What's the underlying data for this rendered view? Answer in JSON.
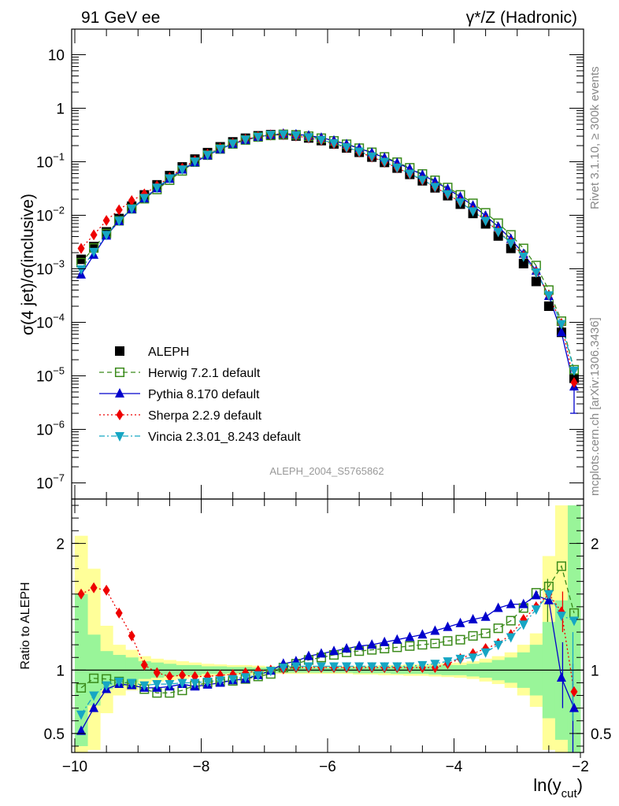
{
  "header": {
    "left": "91 GeV ee",
    "right": "γ*/Z (Hadronic)"
  },
  "side": {
    "top": "Rivet 3.1.10, ≥ 300k events",
    "bottom": "mcplots.cern.ch [arXiv:1306.3436]"
  },
  "watermark": "ALEPH_2004_S5765862",
  "chart_data": [
    {
      "type": "scatter",
      "panel": "main",
      "ylabel": "σ(4 jet)/σ(inclusive)",
      "yscale": "log",
      "ylim": [
        5e-08,
        30
      ],
      "xlim": [
        -10.05,
        -1.95
      ],
      "y_ticks": [
        {
          "v": 1e-07,
          "base": "10",
          "exp": "−7"
        },
        {
          "v": 1e-06,
          "base": "10",
          "exp": "−6"
        },
        {
          "v": 1e-05,
          "base": "10",
          "exp": "−5"
        },
        {
          "v": 0.0001,
          "base": "10",
          "exp": "−4"
        },
        {
          "v": 0.001,
          "base": "10",
          "exp": "−3"
        },
        {
          "v": 0.01,
          "base": "10",
          "exp": "−2"
        },
        {
          "v": 0.1,
          "base": "10",
          "exp": "−1"
        },
        {
          "v": 1,
          "base": "1",
          "exp": ""
        },
        {
          "v": 10,
          "base": "10",
          "exp": ""
        }
      ],
      "x": [
        -9.9,
        -9.7,
        -9.5,
        -9.3,
        -9.1,
        -8.9,
        -8.7,
        -8.5,
        -8.3,
        -8.1,
        -7.9,
        -7.7,
        -7.5,
        -7.3,
        -7.1,
        -6.9,
        -6.7,
        -6.5,
        -6.3,
        -6.1,
        -5.9,
        -5.7,
        -5.5,
        -5.3,
        -5.1,
        -4.9,
        -4.7,
        -4.5,
        -4.3,
        -4.1,
        -3.9,
        -3.7,
        -3.5,
        -3.3,
        -3.1,
        -2.9,
        -2.7,
        -2.5,
        -2.3,
        -2.1
      ],
      "series": [
        {
          "name": "ALEPH",
          "marker": "square-filled",
          "color": "#000000",
          "values": [
            0.0015,
            0.0026,
            0.0049,
            0.0087,
            0.0148,
            0.024,
            0.037,
            0.055,
            0.08,
            0.112,
            0.148,
            0.19,
            0.235,
            0.275,
            0.305,
            0.32,
            0.318,
            0.302,
            0.278,
            0.248,
            0.215,
            0.181,
            0.15,
            0.122,
            0.097,
            0.076,
            0.058,
            0.044,
            0.0325,
            0.0232,
            0.0161,
            0.0108,
            0.0069,
            0.0041,
            0.0024,
            0.00125,
            0.00058,
            0.0002,
            6.5e-05,
            9e-06
          ]
        },
        {
          "name": "Herwig 7.2.1 default",
          "marker": "square-open",
          "color": "#3a8a1a",
          "dash": "6,4",
          "values": [
            0.0013,
            0.00245,
            0.00455,
            0.0079,
            0.0132,
            0.0204,
            0.0303,
            0.0452,
            0.0674,
            0.0986,
            0.133,
            0.173,
            0.215,
            0.255,
            0.29,
            0.31,
            0.325,
            0.318,
            0.3,
            0.275,
            0.245,
            0.212,
            0.179,
            0.15,
            0.123,
            0.098,
            0.077,
            0.059,
            0.045,
            0.033,
            0.024,
            0.0167,
            0.0111,
            0.0071,
            0.0043,
            0.0024,
            0.00115,
            0.0004,
            0.000105,
            1.3e-05
          ]
        },
        {
          "name": "Pythia 8.170 default",
          "marker": "triangle-up",
          "color": "#0000cc",
          "dash": "",
          "values": [
            0.00078,
            0.00182,
            0.00417,
            0.00775,
            0.013,
            0.0206,
            0.0318,
            0.0479,
            0.0712,
            0.0975,
            0.131,
            0.171,
            0.216,
            0.256,
            0.292,
            0.318,
            0.333,
            0.324,
            0.308,
            0.281,
            0.248,
            0.212,
            0.178,
            0.147,
            0.119,
            0.095,
            0.074,
            0.057,
            0.0425,
            0.031,
            0.0221,
            0.0151,
            0.0098,
            0.0061,
            0.0036,
            0.0019,
            0.00092,
            0.00031,
            6.5e-05,
            6.3e-06
          ]
        },
        {
          "name": "Sherpa 2.2.9 default",
          "marker": "diamond",
          "color": "#ee0000",
          "dash": "2,3",
          "values": [
            0.0024,
            0.0043,
            0.008,
            0.0126,
            0.0188,
            0.025,
            0.0356,
            0.051,
            0.076,
            0.105,
            0.139,
            0.178,
            0.221,
            0.262,
            0.294,
            0.315,
            0.32,
            0.303,
            0.279,
            0.249,
            0.216,
            0.182,
            0.151,
            0.123,
            0.098,
            0.077,
            0.059,
            0.045,
            0.0335,
            0.0245,
            0.0176,
            0.0122,
            0.0081,
            0.005,
            0.0031,
            0.00175,
            0.00087,
            0.00032,
            9.5e-05,
            7.5e-06
          ]
        },
        {
          "name": "Vincia 2.3.01_8.243 default",
          "marker": "triangle-down",
          "color": "#16a6c4",
          "dash": "7,3,2,3",
          "values": [
            0.00098,
            0.00208,
            0.00431,
            0.00792,
            0.0133,
            0.0211,
            0.033,
            0.049,
            0.0722,
            0.101,
            0.135,
            0.175,
            0.219,
            0.26,
            0.293,
            0.318,
            0.325,
            0.311,
            0.287,
            0.256,
            0.222,
            0.187,
            0.155,
            0.126,
            0.1,
            0.078,
            0.06,
            0.046,
            0.034,
            0.0248,
            0.0175,
            0.0119,
            0.0079,
            0.0049,
            0.003,
            0.0017,
            0.00086,
            0.00032,
            9.3e-05,
            1.25e-05
          ]
        }
      ],
      "error_bars": [
        {
          "x": -2.1,
          "low": 2e-06,
          "high": 1.4e-05
        }
      ]
    },
    {
      "type": "scatter",
      "panel": "ratio",
      "ylabel": "Ratio to ALEPH",
      "ylim": [
        0.35,
        2.35
      ],
      "xlim": [
        -10.05,
        -1.95
      ],
      "xlabel": "ln(y",
      "xlabel_sub": "cut",
      "xlabel_end": ")",
      "x_ticks": [
        {
          "v": -10,
          "label": "−10"
        },
        {
          "v": -8,
          "label": "−8"
        },
        {
          "v": -6,
          "label": "−6"
        },
        {
          "v": -4,
          "label": "−4"
        },
        {
          "v": -2,
          "label": "−2"
        }
      ],
      "y_ticks": [
        {
          "v": 0.5,
          "label": "0.5"
        },
        {
          "v": 1,
          "label": "1"
        },
        {
          "v": 2,
          "label": "2"
        }
      ],
      "x": [
        -9.9,
        -9.7,
        -9.5,
        -9.3,
        -9.1,
        -8.9,
        -8.7,
        -8.5,
        -8.3,
        -8.1,
        -7.9,
        -7.7,
        -7.5,
        -7.3,
        -7.1,
        -6.9,
        -6.7,
        -6.5,
        -6.3,
        -6.1,
        -5.9,
        -5.7,
        -5.5,
        -5.3,
        -5.1,
        -4.9,
        -4.7,
        -4.5,
        -4.3,
        -4.1,
        -3.9,
        -3.7,
        -3.5,
        -3.3,
        -3.1,
        -2.9,
        -2.7,
        -2.5,
        -2.3,
        -2.1
      ],
      "band_green": [
        [
          0.4,
          1.6
        ],
        [
          0.72,
          1.28
        ],
        [
          0.85,
          1.15
        ],
        [
          0.88,
          1.12
        ],
        [
          0.9,
          1.1
        ],
        [
          0.93,
          1.07
        ],
        [
          0.94,
          1.06
        ],
        [
          0.95,
          1.05
        ],
        [
          0.96,
          1.04
        ],
        [
          0.96,
          1.04
        ],
        [
          0.97,
          1.03
        ],
        [
          0.97,
          1.03
        ],
        [
          0.975,
          1.025
        ],
        [
          0.975,
          1.025
        ],
        [
          0.98,
          1.02
        ],
        [
          0.98,
          1.02
        ],
        [
          0.98,
          1.02
        ],
        [
          0.98,
          1.02
        ],
        [
          0.98,
          1.02
        ],
        [
          0.98,
          1.02
        ],
        [
          0.98,
          1.02
        ],
        [
          0.98,
          1.02
        ],
        [
          0.975,
          1.025
        ],
        [
          0.975,
          1.025
        ],
        [
          0.975,
          1.025
        ],
        [
          0.97,
          1.03
        ],
        [
          0.97,
          1.03
        ],
        [
          0.97,
          1.03
        ],
        [
          0.965,
          1.035
        ],
        [
          0.96,
          1.04
        ],
        [
          0.96,
          1.04
        ],
        [
          0.95,
          1.05
        ],
        [
          0.94,
          1.06
        ],
        [
          0.92,
          1.08
        ],
        [
          0.9,
          1.1
        ],
        [
          0.86,
          1.14
        ],
        [
          0.8,
          1.2
        ],
        [
          0.62,
          1.38
        ],
        [
          0.45,
          1.55
        ],
        [
          0.35,
          2.3
        ]
      ],
      "band_yellow": [
        [
          0.35,
          2.06
        ],
        [
          0.37,
          1.8
        ],
        [
          0.66,
          1.35
        ],
        [
          0.8,
          1.2
        ],
        [
          0.84,
          1.16
        ],
        [
          0.89,
          1.11
        ],
        [
          0.91,
          1.09
        ],
        [
          0.92,
          1.08
        ],
        [
          0.93,
          1.07
        ],
        [
          0.94,
          1.06
        ],
        [
          0.95,
          1.05
        ],
        [
          0.955,
          1.045
        ],
        [
          0.96,
          1.04
        ],
        [
          0.96,
          1.04
        ],
        [
          0.965,
          1.035
        ],
        [
          0.97,
          1.03
        ],
        [
          0.97,
          1.03
        ],
        [
          0.97,
          1.03
        ],
        [
          0.97,
          1.03
        ],
        [
          0.97,
          1.03
        ],
        [
          0.97,
          1.03
        ],
        [
          0.97,
          1.03
        ],
        [
          0.965,
          1.035
        ],
        [
          0.965,
          1.035
        ],
        [
          0.96,
          1.04
        ],
        [
          0.96,
          1.04
        ],
        [
          0.955,
          1.045
        ],
        [
          0.955,
          1.045
        ],
        [
          0.95,
          1.05
        ],
        [
          0.945,
          1.055
        ],
        [
          0.94,
          1.06
        ],
        [
          0.93,
          1.07
        ],
        [
          0.91,
          1.09
        ],
        [
          0.89,
          1.11
        ],
        [
          0.86,
          1.14
        ],
        [
          0.8,
          1.2
        ],
        [
          0.71,
          1.29
        ],
        [
          0.37,
          1.9
        ],
        [
          0.35,
          2.3
        ],
        [
          0.35,
          2.3
        ]
      ],
      "series": [
        {
          "name": "Herwig 7.2.1 default",
          "marker": "square-open",
          "color": "#3a8a1a",
          "dash": "6,4",
          "values": [
            0.86,
            0.935,
            0.93,
            0.91,
            0.89,
            0.85,
            0.82,
            0.82,
            0.84,
            0.88,
            0.9,
            0.91,
            0.915,
            0.93,
            0.95,
            0.97,
            1.02,
            1.05,
            1.08,
            1.1,
            1.12,
            1.14,
            1.15,
            1.16,
            1.17,
            1.18,
            1.19,
            1.2,
            1.21,
            1.23,
            1.24,
            1.27,
            1.29,
            1.33,
            1.39,
            1.49,
            1.61,
            1.66,
            1.82,
            1.45
          ]
        },
        {
          "name": "Pythia 8.170 default",
          "marker": "triangle-up",
          "color": "#0000cc",
          "dash": "",
          "values": [
            0.52,
            0.7,
            0.85,
            0.89,
            0.88,
            0.86,
            0.86,
            0.87,
            0.89,
            0.87,
            0.885,
            0.9,
            0.92,
            0.93,
            0.96,
            0.995,
            1.05,
            1.07,
            1.11,
            1.13,
            1.15,
            1.17,
            1.19,
            1.2,
            1.22,
            1.24,
            1.26,
            1.28,
            1.31,
            1.34,
            1.37,
            1.4,
            1.42,
            1.49,
            1.52,
            1.52,
            1.59,
            1.55,
            0.94,
            0.7
          ]
        },
        {
          "name": "Sherpa 2.2.9 default",
          "marker": "diamond",
          "color": "#ee0000",
          "dash": "2,3",
          "values": [
            1.6,
            1.65,
            1.63,
            1.45,
            1.27,
            1.04,
            0.98,
            0.95,
            0.96,
            0.95,
            0.95,
            0.96,
            0.965,
            0.98,
            0.995,
            1.0,
            1.01,
            1.02,
            1.02,
            1.02,
            1.02,
            1.02,
            1.02,
            1.02,
            1.02,
            1.02,
            1.02,
            1.02,
            1.02,
            1.05,
            1.09,
            1.13,
            1.17,
            1.21,
            1.28,
            1.4,
            1.5,
            1.6,
            1.46,
            0.83
          ]
        },
        {
          "name": "Vincia 2.3.01_8.243 default",
          "marker": "triangle-down",
          "color": "#16a6c4",
          "dash": "7,3,2,3",
          "values": [
            0.65,
            0.8,
            0.88,
            0.91,
            0.9,
            0.88,
            0.89,
            0.89,
            0.9,
            0.9,
            0.91,
            0.92,
            0.93,
            0.945,
            0.96,
            0.995,
            1.02,
            1.03,
            1.03,
            1.03,
            1.03,
            1.03,
            1.03,
            1.03,
            1.03,
            1.03,
            1.03,
            1.04,
            1.05,
            1.07,
            1.09,
            1.1,
            1.14,
            1.2,
            1.26,
            1.36,
            1.48,
            1.6,
            1.43,
            1.39
          ]
        }
      ],
      "error_bars": [
        {
          "x": -2.5,
          "low": 1.38,
          "high": 1.72
        },
        {
          "x": -2.3,
          "low": 0.7,
          "high": 1.22
        },
        {
          "x": -2.1,
          "low": 0.35,
          "high": 1.05
        },
        {
          "x": -2.3,
          "low": 1.3,
          "high": 1.62
        },
        {
          "x": -2.1,
          "low": 0.6,
          "high": 1.3
        }
      ]
    }
  ]
}
